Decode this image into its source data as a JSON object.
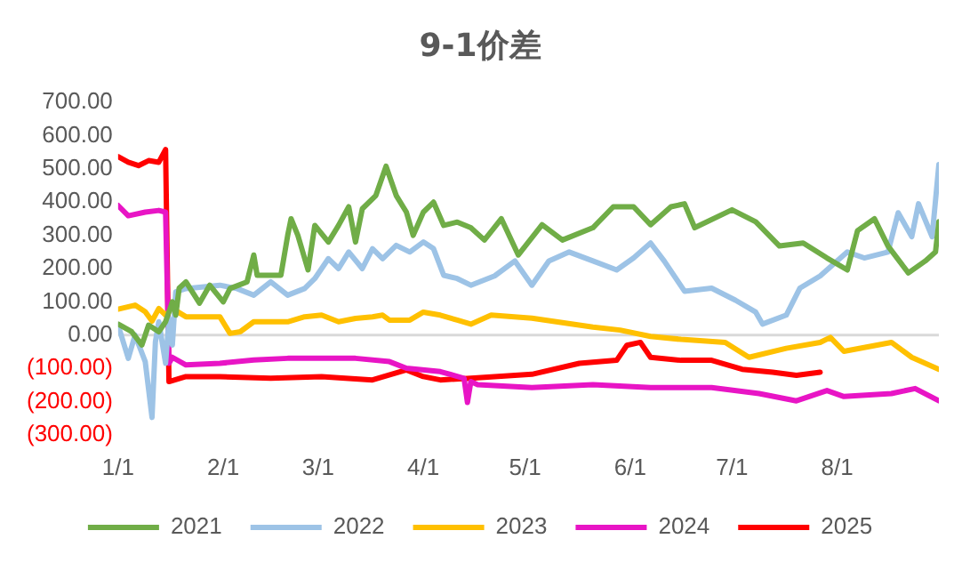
{
  "chart_data": {
    "type": "line",
    "title": "9-1价差",
    "xlim": [
      "--01-01",
      "--08-31"
    ],
    "xticks": [
      {
        "value": "--01-01",
        "label": "1/1"
      },
      {
        "value": "--02-01",
        "label": "2/1"
      },
      {
        "value": "--03-01",
        "label": "3/1"
      },
      {
        "value": "--04-01",
        "label": "4/1"
      },
      {
        "value": "--05-01",
        "label": "5/1"
      },
      {
        "value": "--06-01",
        "label": "6/1"
      },
      {
        "value": "--07-01",
        "label": "7/1"
      },
      {
        "value": "--08-01",
        "label": "8/1"
      }
    ],
    "ylim": [
      -300,
      700
    ],
    "yticks": [
      {
        "value": 700,
        "label": "700.00"
      },
      {
        "value": 600,
        "label": "600.00"
      },
      {
        "value": 500,
        "label": "500.00"
      },
      {
        "value": 400,
        "label": "400.00"
      },
      {
        "value": 300,
        "label": "300.00"
      },
      {
        "value": 200,
        "label": "200.00"
      },
      {
        "value": 100,
        "label": "100.00"
      },
      {
        "value": 0,
        "label": "0.00"
      },
      {
        "value": -100,
        "label": "(100.00)"
      },
      {
        "value": -200,
        "label": "(200.00)"
      },
      {
        "value": -300,
        "label": "(300.00)"
      }
    ],
    "grid": false,
    "legend": "bottom",
    "ref_lines": [
      {
        "axis": "y",
        "value": 0,
        "color": "#d9d9d9"
      }
    ],
    "marker": "none",
    "line_style": "solid",
    "series": [
      {
        "name": "2021",
        "color": "#70ad47",
        "x": [
          "--01-01",
          "--01-05",
          "--01-08",
          "--01-10",
          "--01-13",
          "--01-15",
          "--01-17",
          "--01-18",
          "--01-19",
          "--01-21",
          "--01-25",
          "--01-28",
          "--02-01",
          "--02-03",
          "--02-08",
          "--02-10",
          "--02-11",
          "--02-18",
          "--02-20",
          "--02-21",
          "--02-23",
          "--02-26",
          "--02-28",
          "--03-04",
          "--03-07",
          "--03-10",
          "--03-12",
          "--03-14",
          "--03-18",
          "--03-21",
          "--03-24",
          "--03-27",
          "--03-29",
          "--04-01",
          "--04-04",
          "--04-07",
          "--04-11",
          "--04-15",
          "--04-19",
          "--04-24",
          "--04-29",
          "--05-06",
          "--05-12",
          "--05-21",
          "--05-27",
          "--06-02",
          "--06-07",
          "--06-13",
          "--06-17",
          "--06-20",
          "--07-01",
          "--07-08",
          "--07-15",
          "--07-22",
          "--07-29",
          "--08-04",
          "--08-07",
          "--08-12",
          "--08-16",
          "--08-22",
          "--08-27",
          "--08-30",
          "--08-31"
        ],
        "values": [
          33,
          10,
          -30,
          30,
          10,
          40,
          100,
          60,
          141,
          160,
          96,
          150,
          100,
          140,
          160,
          241,
          180,
          180,
          300,
          350,
          300,
          196,
          330,
          280,
          330,
          386,
          280,
          380,
          420,
          508,
          420,
          370,
          300,
          370,
          400,
          330,
          340,
          323,
          286,
          350,
          241,
          332,
          286,
          323,
          386,
          386,
          332,
          386,
          395,
          323,
          377,
          341,
          268,
          277,
          232,
          196,
          314,
          350,
          268,
          187,
          223,
          250,
          341
        ]
      },
      {
        "name": "2022",
        "color": "#9dc3e6",
        "x": [
          "--01-01",
          "--01-04",
          "--01-06",
          "--01-09",
          "--01-11",
          "--01-12",
          "--01-13",
          "--01-15",
          "--01-16",
          "--01-17",
          "--01-18",
          "--01-21",
          "--01-31",
          "--02-05",
          "--02-10",
          "--02-15",
          "--02-20",
          "--02-25",
          "--02-28",
          "--03-04",
          "--03-07",
          "--03-10",
          "--03-14",
          "--03-17",
          "--03-20",
          "--03-24",
          "--03-28",
          "--04-01",
          "--04-04",
          "--04-07",
          "--04-11",
          "--04-15",
          "--04-22",
          "--04-28",
          "--05-03",
          "--05-08",
          "--05-14",
          "--05-21",
          "--05-28",
          "--06-02",
          "--06-07",
          "--06-11",
          "--06-17",
          "--06-25",
          "--07-02",
          "--07-08",
          "--07-10",
          "--07-17",
          "--07-21",
          "--07-27",
          "--08-04",
          "--08-09",
          "--08-16",
          "--08-19",
          "--08-23",
          "--08-25",
          "--08-29",
          "--08-31"
        ],
        "values": [
          30,
          -70,
          0,
          -80,
          -248,
          -20,
          40,
          -85,
          50,
          -30,
          130,
          140,
          150,
          140,
          120,
          160,
          120,
          140,
          170,
          230,
          200,
          250,
          200,
          260,
          230,
          270,
          250,
          280,
          260,
          180,
          170,
          150,
          178,
          223,
          150,
          223,
          250,
          223,
          196,
          232,
          277,
          223,
          132,
          141,
          105,
          69,
          33,
          60,
          141,
          178,
          250,
          232,
          250,
          368,
          296,
          395,
          296,
          513
        ]
      },
      {
        "name": "2023",
        "color": "#ffc000",
        "x": [
          "--01-01",
          "--01-06",
          "--01-09",
          "--01-11",
          "--01-13",
          "--01-15",
          "--01-17",
          "--01-21",
          "--01-31",
          "--02-03",
          "--02-06",
          "--02-10",
          "--02-20",
          "--02-25",
          "--03-02",
          "--03-07",
          "--03-12",
          "--03-17",
          "--03-20",
          "--03-22",
          "--03-28",
          "--04-01",
          "--04-06",
          "--04-11",
          "--04-15",
          "--04-21",
          "--05-03",
          "--05-21",
          "--05-29",
          "--06-07",
          "--06-16",
          "--06-29",
          "--07-06",
          "--07-17",
          "--07-27",
          "--07-30",
          "--08-03",
          "--08-17",
          "--08-23",
          "--08-31"
        ],
        "values": [
          78,
          90,
          70,
          42,
          80,
          60,
          80,
          55,
          55,
          5,
          10,
          40,
          40,
          55,
          60,
          40,
          50,
          55,
          60,
          45,
          45,
          69,
          60,
          45,
          33,
          60,
          51,
          24,
          15,
          -4,
          -13,
          -22,
          -67,
          -40,
          -22,
          -7,
          -49,
          -22,
          -67,
          -103
        ]
      },
      {
        "name": "2024",
        "color": "#e815c5",
        "x": [
          "--01-01",
          "--01-04",
          "--01-09",
          "--01-13",
          "--01-15",
          "--01-16",
          "--01-17",
          "--01-21",
          "--01-31",
          "--02-10",
          "--02-20",
          "--03-02",
          "--03-12",
          "--03-22",
          "--03-27",
          "--04-06",
          "--04-13",
          "--04-14",
          "--04-15",
          "--04-17",
          "--05-03",
          "--05-21",
          "--06-07",
          "--06-25",
          "--07-09",
          "--07-20",
          "--07-29",
          "--08-03",
          "--08-17",
          "--08-24",
          "--08-31"
        ],
        "values": [
          390,
          359,
          370,
          375,
          370,
          -85,
          -67,
          -90,
          -85,
          -75,
          -70,
          -70,
          -70,
          -80,
          -100,
          -110,
          -130,
          -203,
          -140,
          -149,
          -158,
          -149,
          -158,
          -158,
          -176,
          -198,
          -167,
          -185,
          -176,
          -161,
          -198
        ]
      },
      {
        "name": "2025",
        "color": "#ff0000",
        "x": [
          "--01-01",
          "--01-04",
          "--01-07",
          "--01-10",
          "--01-13",
          "--01-15",
          "--01-16",
          "--01-21",
          "--01-31",
          "--02-15",
          "--03-02",
          "--03-17",
          "--03-27",
          "--04-01",
          "--04-06",
          "--04-15",
          "--05-03",
          "--05-17",
          "--05-28",
          "--05-31",
          "--06-04",
          "--06-07",
          "--06-16",
          "--06-25",
          "--07-04",
          "--07-13",
          "--07-20",
          "--07-27"
        ],
        "values": [
          537,
          520,
          510,
          525,
          520,
          558,
          -140,
          -125,
          -125,
          -130,
          -125,
          -135,
          -105,
          -125,
          -135,
          -130,
          -118,
          -85,
          -76,
          -31,
          -22,
          -67,
          -76,
          -76,
          -103,
          -112,
          -121,
          -112
        ]
      }
    ]
  }
}
